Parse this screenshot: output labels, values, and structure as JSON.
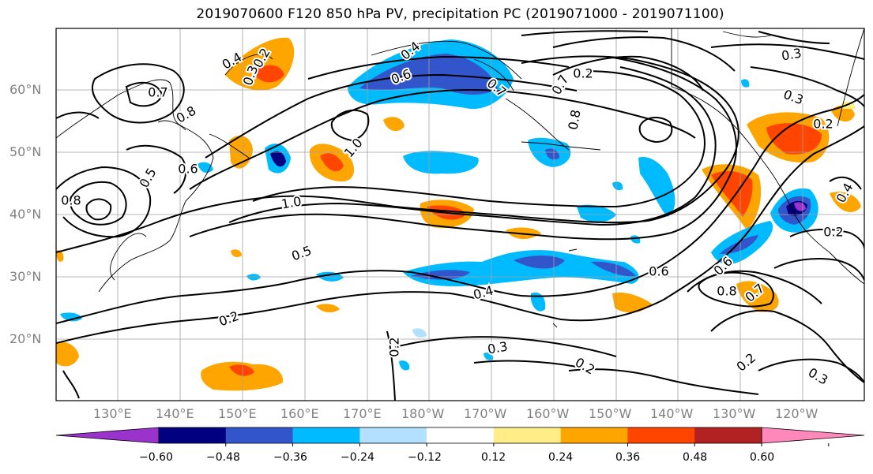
{
  "title": "2019070600 F120 850 hPa PV, precipitation PC (2019071000 - 2019071100)",
  "lat_labels": [
    "60°N",
    "50°N",
    "40°N",
    "30°N",
    "20°N"
  ],
  "lon_labels": [
    "130°E",
    "140°E",
    "150°E",
    "160°E",
    "170°E",
    "180°W",
    "170°W",
    "160°W",
    "150°W",
    "140°W",
    "130°W",
    "120°W"
  ],
  "contour_labels": [
    "0.4",
    "0.2",
    "0.3",
    "0.7",
    "0.8",
    "0.5",
    "0.4",
    "0.6",
    "0.7",
    "0.8",
    "0.7",
    "0.2",
    "0.3",
    "0.2",
    "1.0",
    "1.0",
    "0.5",
    "0.4",
    "0.6",
    "0.6",
    "0.8",
    "0.7",
    "0.2",
    "0.2",
    "0.3",
    "0.2",
    "0.3",
    "0.2",
    "0.3",
    "0.8",
    "0.6",
    "0.4",
    "0.2"
  ],
  "colorbar": {
    "ticks": [
      "−0.60",
      "−0.48",
      "−0.36",
      "−0.24",
      "−0.12",
      "0.12",
      "0.24",
      "0.36",
      "0.48",
      "0.60"
    ],
    "colors": [
      "#9933cc",
      "#000080",
      "#3355cc",
      "#00bbff",
      "#b3e0ff",
      "#ffffff",
      "#ffee88",
      "#ffa500",
      "#ff4500",
      "#b22222",
      "#ff88bb"
    ]
  },
  "colors": {
    "neg_strong": "#3355cc",
    "neg_mid": "#00bbff",
    "neg_light": "#b3e0ff",
    "neg_extreme": "#000080",
    "neg_purple": "#9933cc",
    "pos_light": "#ffee88",
    "pos_mid": "#ffa500",
    "pos_strong": "#ff4500"
  }
}
